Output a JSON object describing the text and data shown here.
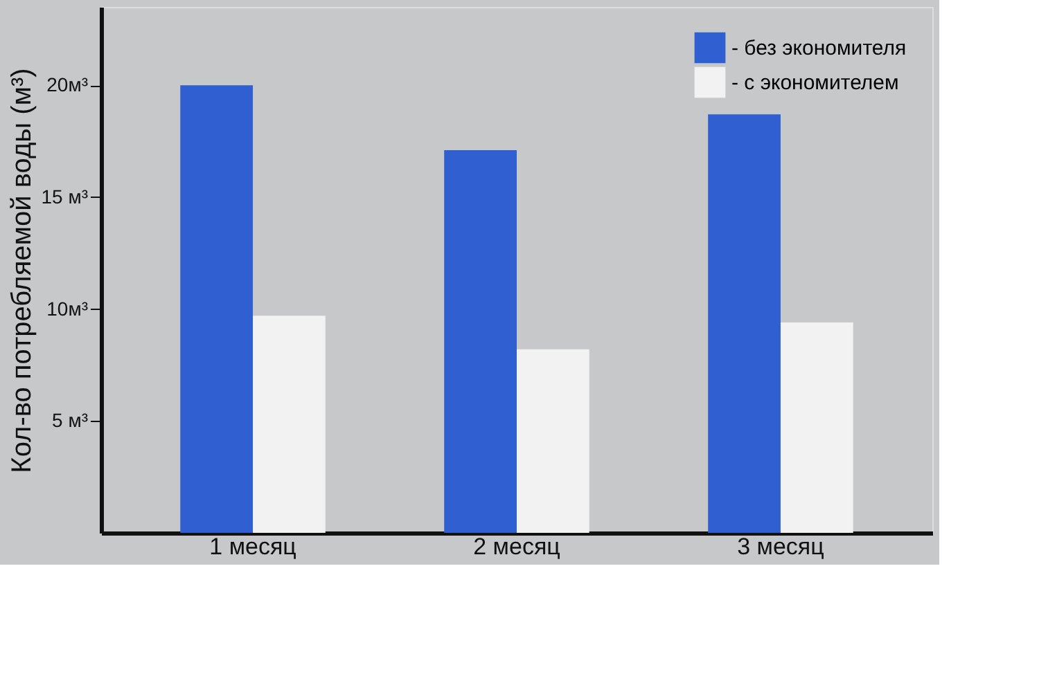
{
  "chart_data": {
    "type": "bar",
    "ylabel": "Кол-во потребляемой воды (м³)",
    "categories": [
      "1 месяц",
      "2 месяц",
      "3 месяц"
    ],
    "series": [
      {
        "name": "- без экономителя",
        "color": "#2f5fd0",
        "values": [
          20,
          17.1,
          18.7
        ]
      },
      {
        "name": "- с экономителем",
        "color": "#f2f2f2",
        "values": [
          9.7,
          8.2,
          9.4
        ]
      }
    ],
    "ylim": [
      0,
      23.5
    ],
    "yticks": [
      {
        "value": 5,
        "label": "5 м³"
      },
      {
        "value": 10,
        "label": "10м³"
      },
      {
        "value": 15,
        "label": "15 м³"
      },
      {
        "value": 20,
        "label": "20м³"
      }
    ],
    "grid": false,
    "legend": "top right"
  }
}
